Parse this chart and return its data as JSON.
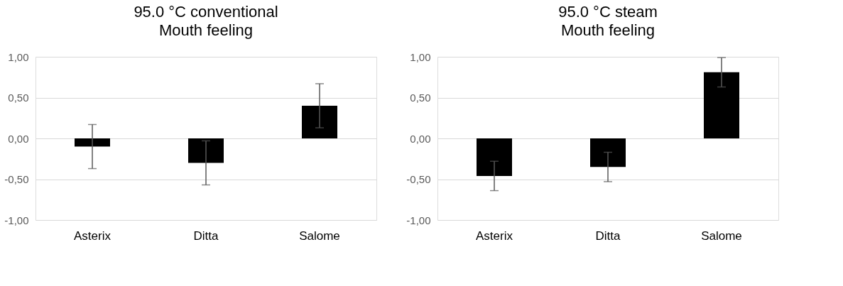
{
  "chart_data": [
    {
      "type": "bar",
      "title": "95.0 °C conventional",
      "subtitle": "Mouth feeling",
      "categories": [
        "Asterix",
        "Ditta",
        "Salome"
      ],
      "series": [
        {
          "color": "#000000",
          "values": [
            -0.1,
            -0.3,
            0.4
          ],
          "errors": [
            0.27,
            0.27,
            0.27
          ]
        }
      ],
      "ylim": [
        -1.0,
        1.0
      ],
      "yticks": [
        {
          "value": -1.0,
          "label": "-1,00"
        },
        {
          "value": -0.5,
          "label": "-0,50"
        },
        {
          "value": 0.0,
          "label": "0,00"
        },
        {
          "value": 0.5,
          "label": "0,50"
        },
        {
          "value": 1.0,
          "label": "1,00"
        }
      ],
      "grid": "y"
    },
    {
      "type": "bar",
      "title": "95.0 °C steam",
      "subtitle": "Mouth feeling",
      "categories": [
        "Asterix",
        "Ditta",
        "Salome"
      ],
      "series": [
        {
          "color": "#000000",
          "values": [
            -0.46,
            -0.35,
            0.81
          ],
          "errors": [
            0.18,
            0.18,
            0.18
          ]
        }
      ],
      "ylim": [
        -1.0,
        1.0
      ],
      "yticks": [
        {
          "value": -1.0,
          "label": "-1,00"
        },
        {
          "value": -0.5,
          "label": "-0,50"
        },
        {
          "value": 0.0,
          "label": "0,00"
        },
        {
          "value": 0.5,
          "label": "0,50"
        },
        {
          "value": 1.0,
          "label": "1,00"
        }
      ],
      "grid": "y"
    }
  ]
}
